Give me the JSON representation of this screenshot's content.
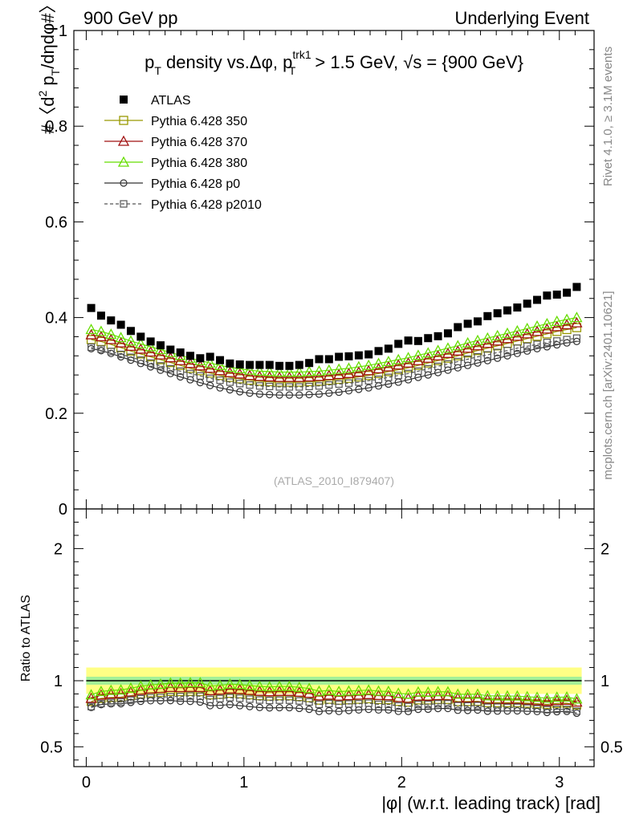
{
  "header": {
    "left": "900 GeV pp",
    "right": "Underlying Event"
  },
  "side_labels": {
    "rivet": "Rivet 4.1.0, ≥ 3.1M events",
    "mcplots": "mcplots.cern.ch [arXiv:2401.10621]"
  },
  "chart_data": [
    {
      "type": "scatter",
      "panel": "main",
      "title_parts": {
        "p": "p",
        "sub_T": "T",
        "mid": " density vs.Δφ, p",
        "sup_trk1": "trk1",
        "sub_T2": "T",
        "tail": " > 1.5 GeV, √s = {900 GeV}"
      },
      "ylabel": "#〈d² p_T/dηdφ#〉",
      "ylabel_parts": {
        "a": "#〈d",
        "sup2": "2",
        "b": " p",
        "subT": "T",
        "c": "/dηdφ#〉"
      },
      "xlim": [
        -0.0785,
        3.2201
      ],
      "ylim": [
        0,
        1
      ],
      "yticks": [
        0,
        0.2,
        0.4,
        0.6,
        0.8,
        1
      ],
      "ytick_labels": [
        "0",
        "0.2",
        "0.4",
        "0.6",
        "0.8",
        "1"
      ],
      "watermark": "(ATLAS_2010_I879407)",
      "x": [
        0.0314,
        0.0942,
        0.1571,
        0.2199,
        0.2827,
        0.3456,
        0.4084,
        0.4712,
        0.5341,
        0.5969,
        0.6597,
        0.7226,
        0.7854,
        0.8482,
        0.9111,
        0.9739,
        1.0367,
        1.0996,
        1.1624,
        1.2252,
        1.2881,
        1.3509,
        1.4137,
        1.4765,
        1.5394,
        1.6022,
        1.665,
        1.7279,
        1.7907,
        1.8535,
        1.9164,
        1.9792,
        2.042,
        2.1049,
        2.1677,
        2.2305,
        2.2934,
        2.3562,
        2.419,
        2.4819,
        2.5447,
        2.6075,
        2.6704,
        2.7332,
        2.796,
        2.8589,
        2.9217,
        2.9845,
        3.0474,
        3.1102
      ],
      "series": [
        {
          "name": "ATLAS",
          "marker": "filled-square",
          "color": "#000000",
          "values": [
            0.42,
            0.404,
            0.394,
            0.385,
            0.372,
            0.36,
            0.35,
            0.342,
            0.333,
            0.327,
            0.32,
            0.315,
            0.318,
            0.311,
            0.304,
            0.302,
            0.301,
            0.301,
            0.301,
            0.299,
            0.299,
            0.301,
            0.305,
            0.313,
            0.313,
            0.318,
            0.319,
            0.321,
            0.323,
            0.33,
            0.335,
            0.345,
            0.352,
            0.351,
            0.357,
            0.361,
            0.367,
            0.38,
            0.387,
            0.392,
            0.403,
            0.409,
            0.415,
            0.421,
            0.429,
            0.437,
            0.446,
            0.448,
            0.452,
            0.464
          ]
        },
        {
          "name": "Pythia 6.428 350",
          "marker": "open-square",
          "color": "#999900",
          "values": [
            0.354,
            0.35,
            0.344,
            0.337,
            0.33,
            0.324,
            0.318,
            0.312,
            0.306,
            0.3,
            0.294,
            0.289,
            0.284,
            0.279,
            0.275,
            0.272,
            0.269,
            0.267,
            0.266,
            0.265,
            0.265,
            0.265,
            0.266,
            0.267,
            0.269,
            0.271,
            0.273,
            0.276,
            0.279,
            0.283,
            0.287,
            0.291,
            0.295,
            0.3,
            0.305,
            0.31,
            0.315,
            0.32,
            0.326,
            0.331,
            0.336,
            0.341,
            0.346,
            0.351,
            0.356,
            0.361,
            0.366,
            0.371,
            0.375,
            0.379
          ]
        },
        {
          "name": "Pythia 6.428 370",
          "marker": "open-triangle",
          "color": "#a01010",
          "values": [
            0.364,
            0.36,
            0.354,
            0.347,
            0.34,
            0.334,
            0.328,
            0.322,
            0.316,
            0.31,
            0.304,
            0.299,
            0.294,
            0.289,
            0.285,
            0.282,
            0.279,
            0.277,
            0.276,
            0.275,
            0.275,
            0.275,
            0.276,
            0.277,
            0.279,
            0.281,
            0.283,
            0.286,
            0.289,
            0.293,
            0.297,
            0.301,
            0.305,
            0.31,
            0.315,
            0.32,
            0.325,
            0.33,
            0.336,
            0.341,
            0.346,
            0.351,
            0.356,
            0.361,
            0.366,
            0.371,
            0.376,
            0.381,
            0.385,
            0.389
          ]
        },
        {
          "name": "Pythia 6.428 380",
          "marker": "open-triangle",
          "color": "#66dd00",
          "values": [
            0.375,
            0.371,
            0.365,
            0.358,
            0.351,
            0.345,
            0.339,
            0.333,
            0.327,
            0.321,
            0.315,
            0.31,
            0.305,
            0.3,
            0.296,
            0.293,
            0.29,
            0.288,
            0.287,
            0.286,
            0.286,
            0.286,
            0.287,
            0.288,
            0.29,
            0.292,
            0.294,
            0.297,
            0.3,
            0.304,
            0.308,
            0.312,
            0.316,
            0.321,
            0.326,
            0.331,
            0.336,
            0.341,
            0.347,
            0.352,
            0.357,
            0.362,
            0.367,
            0.372,
            0.377,
            0.382,
            0.387,
            0.392,
            0.396,
            0.4
          ]
        },
        {
          "name": "Pythia 6.428 p0",
          "marker": "open-circle",
          "color": "#333333",
          "values": [
            0.335,
            0.331,
            0.325,
            0.318,
            0.311,
            0.304,
            0.297,
            0.29,
            0.283,
            0.276,
            0.27,
            0.264,
            0.258,
            0.253,
            0.249,
            0.245,
            0.242,
            0.24,
            0.239,
            0.238,
            0.238,
            0.238,
            0.239,
            0.24,
            0.242,
            0.244,
            0.247,
            0.25,
            0.253,
            0.257,
            0.261,
            0.265,
            0.27,
            0.275,
            0.28,
            0.285,
            0.29,
            0.295,
            0.3,
            0.305,
            0.31,
            0.315,
            0.32,
            0.325,
            0.33,
            0.335,
            0.339,
            0.343,
            0.347,
            0.35
          ]
        },
        {
          "name": "Pythia 6.428 p2010",
          "marker": "open-square-dashed",
          "color": "#555555",
          "values": [
            0.338,
            0.334,
            0.329,
            0.323,
            0.317,
            0.311,
            0.305,
            0.299,
            0.293,
            0.288,
            0.283,
            0.278,
            0.273,
            0.269,
            0.265,
            0.262,
            0.259,
            0.257,
            0.256,
            0.255,
            0.255,
            0.255,
            0.256,
            0.257,
            0.259,
            0.261,
            0.263,
            0.265,
            0.268,
            0.271,
            0.275,
            0.279,
            0.283,
            0.288,
            0.293,
            0.298,
            0.303,
            0.308,
            0.313,
            0.318,
            0.322,
            0.327,
            0.331,
            0.336,
            0.34,
            0.344,
            0.348,
            0.351,
            0.354,
            0.357
          ]
        }
      ]
    },
    {
      "type": "scatter",
      "panel": "ratio",
      "ylabel": "Ratio to ATLAS",
      "xlabel": "|φ| (w.r.t. leading track) [rad]",
      "xlim": [
        -0.0785,
        3.2201
      ],
      "ylim": [
        0.35,
        2.3
      ],
      "yticks": [
        0.5,
        1,
        2
      ],
      "ytick_labels": [
        "0.5",
        "1",
        "2"
      ],
      "xticks": [
        0,
        1,
        2,
        3
      ],
      "xtick_labels": [
        "0",
        "1",
        "2",
        "3"
      ],
      "band_inner": [
        0.97,
        1.03
      ],
      "band_outer": [
        0.9,
        1.1
      ],
      "series_note": "ratio values are model series divided by ATLAS at each x"
    }
  ]
}
